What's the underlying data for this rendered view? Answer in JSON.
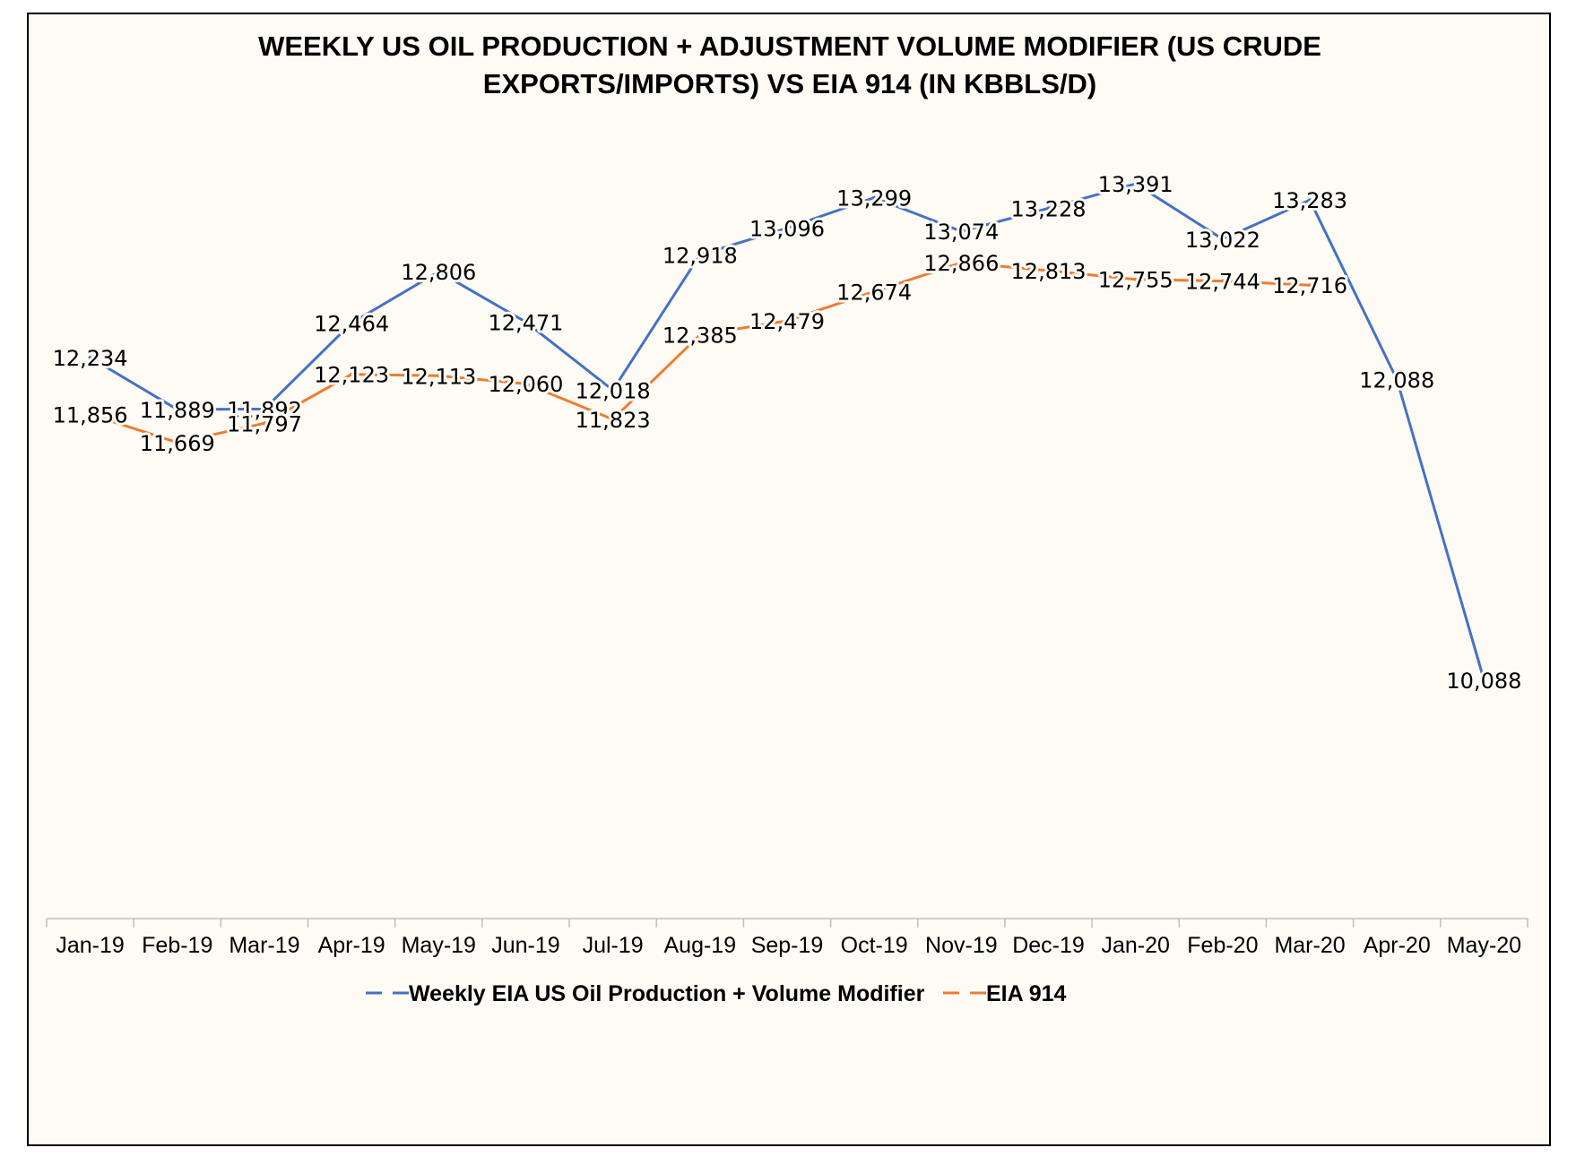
{
  "chart_data": {
    "type": "line",
    "title": "WEEKLY US OIL PRODUCTION + ADJUSTMENT VOLUME MODIFIER (US CRUDE EXPORTS/IMPORTS) VS EIA 914 (IN KBBLS/D)",
    "title_lines": [
      "WEEKLY US OIL PRODUCTION + ADJUSTMENT VOLUME MODIFIER (US CRUDE",
      "EXPORTS/IMPORTS) VS EIA 914 (IN KBBLS/D)"
    ],
    "xlabel": "",
    "ylabel": "",
    "categories": [
      "Jan-19",
      "Feb-19",
      "Mar-19",
      "Apr-19",
      "May-19",
      "Jun-19",
      "Jul-19",
      "Aug-19",
      "Sep-19",
      "Oct-19",
      "Nov-19",
      "Dec-19",
      "Jan-20",
      "Feb-20",
      "Mar-20",
      "Apr-20",
      "May-20"
    ],
    "series": [
      {
        "name": "Weekly EIA US Oil Production + Volume Modifier",
        "color": "#4472c4",
        "values": [
          12234,
          11889,
          11892,
          12464,
          12806,
          12471,
          12018,
          12918,
          13096,
          13299,
          13074,
          13228,
          13391,
          13022,
          13283,
          12088,
          10088
        ],
        "labels": [
          "12,234",
          "11,889",
          "11,892",
          "12,464",
          "12,806",
          "12,471",
          "12,018",
          "12,918",
          "13,096",
          "13,299",
          "13,074",
          "13,228",
          "13,391",
          "13,022",
          "13,283",
          "12,088",
          "10,088"
        ]
      },
      {
        "name": "EIA 914",
        "color": "#ed7d31",
        "values": [
          11856,
          11669,
          11797,
          12123,
          12113,
          12060,
          11823,
          12385,
          12479,
          12674,
          12866,
          12813,
          12755,
          12744,
          12716,
          null,
          null
        ],
        "labels": [
          "11,856",
          "11,669",
          "11,797",
          "12,123",
          "12,113",
          "12,060",
          "11,823",
          "12,385",
          "12,479",
          "12,674",
          "12,866",
          "12,813",
          "12,755",
          "12,744",
          "12,716",
          null,
          null
        ]
      }
    ],
    "ylim": [
      8500,
      14000
    ],
    "grid": false,
    "legend_position": "bottom"
  }
}
